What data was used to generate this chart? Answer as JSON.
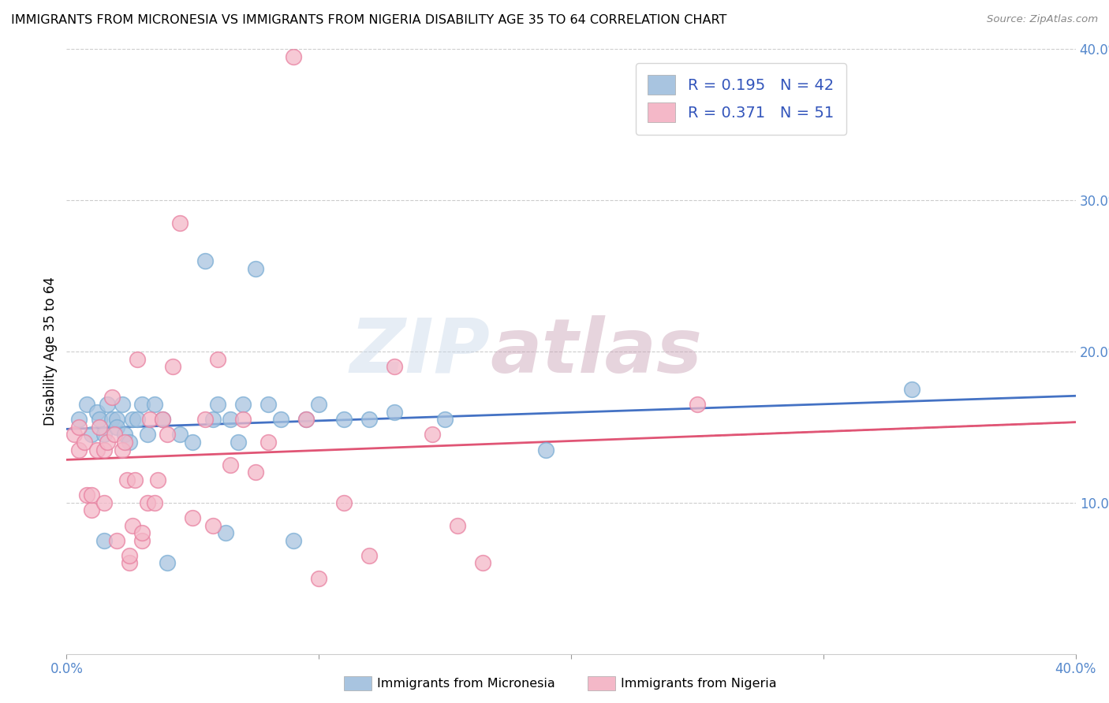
{
  "title": "IMMIGRANTS FROM MICRONESIA VS IMMIGRANTS FROM NIGERIA DISABILITY AGE 35 TO 64 CORRELATION CHART",
  "source": "Source: ZipAtlas.com",
  "ylabel": "Disability Age 35 to 64",
  "xlim": [
    0.0,
    0.4
  ],
  "ylim": [
    0.0,
    0.4
  ],
  "micronesia_color": "#a8c4e0",
  "micronesia_edge_color": "#7aadd4",
  "nigeria_color": "#f4b8c8",
  "nigeria_edge_color": "#e880a0",
  "micronesia_R": 0.195,
  "micronesia_N": 42,
  "nigeria_R": 0.371,
  "nigeria_N": 51,
  "micronesia_line_color": "#4472c4",
  "nigeria_line_color": "#e05575",
  "legend_text_color": "#3355bb",
  "watermark": "ZIPatlas",
  "tick_color": "#5588cc",
  "micronesia_x": [
    0.005,
    0.008,
    0.01,
    0.012,
    0.013,
    0.015,
    0.015,
    0.016,
    0.018,
    0.02,
    0.02,
    0.022,
    0.023,
    0.025,
    0.026,
    0.028,
    0.03,
    0.032,
    0.035,
    0.038,
    0.04,
    0.045,
    0.05,
    0.055,
    0.058,
    0.06,
    0.063,
    0.065,
    0.068,
    0.07,
    0.075,
    0.08,
    0.085,
    0.09,
    0.095,
    0.1,
    0.11,
    0.12,
    0.13,
    0.15,
    0.19,
    0.335
  ],
  "micronesia_y": [
    0.155,
    0.165,
    0.145,
    0.16,
    0.155,
    0.075,
    0.145,
    0.165,
    0.155,
    0.155,
    0.15,
    0.165,
    0.145,
    0.14,
    0.155,
    0.155,
    0.165,
    0.145,
    0.165,
    0.155,
    0.06,
    0.145,
    0.14,
    0.26,
    0.155,
    0.165,
    0.08,
    0.155,
    0.14,
    0.165,
    0.255,
    0.165,
    0.155,
    0.075,
    0.155,
    0.165,
    0.155,
    0.155,
    0.16,
    0.155,
    0.135,
    0.175
  ],
  "nigeria_x": [
    0.003,
    0.005,
    0.005,
    0.007,
    0.008,
    0.01,
    0.01,
    0.012,
    0.013,
    0.015,
    0.015,
    0.016,
    0.018,
    0.019,
    0.02,
    0.022,
    0.023,
    0.024,
    0.025,
    0.025,
    0.026,
    0.027,
    0.028,
    0.03,
    0.03,
    0.032,
    0.033,
    0.035,
    0.036,
    0.038,
    0.04,
    0.042,
    0.045,
    0.05,
    0.055,
    0.058,
    0.06,
    0.065,
    0.07,
    0.075,
    0.08,
    0.09,
    0.095,
    0.1,
    0.11,
    0.12,
    0.13,
    0.145,
    0.155,
    0.165,
    0.25
  ],
  "nigeria_y": [
    0.145,
    0.135,
    0.15,
    0.14,
    0.105,
    0.095,
    0.105,
    0.135,
    0.15,
    0.1,
    0.135,
    0.14,
    0.17,
    0.145,
    0.075,
    0.135,
    0.14,
    0.115,
    0.06,
    0.065,
    0.085,
    0.115,
    0.195,
    0.075,
    0.08,
    0.1,
    0.155,
    0.1,
    0.115,
    0.155,
    0.145,
    0.19,
    0.285,
    0.09,
    0.155,
    0.085,
    0.195,
    0.125,
    0.155,
    0.12,
    0.14,
    0.395,
    0.155,
    0.05,
    0.1,
    0.065,
    0.19,
    0.145,
    0.085,
    0.06,
    0.165
  ]
}
